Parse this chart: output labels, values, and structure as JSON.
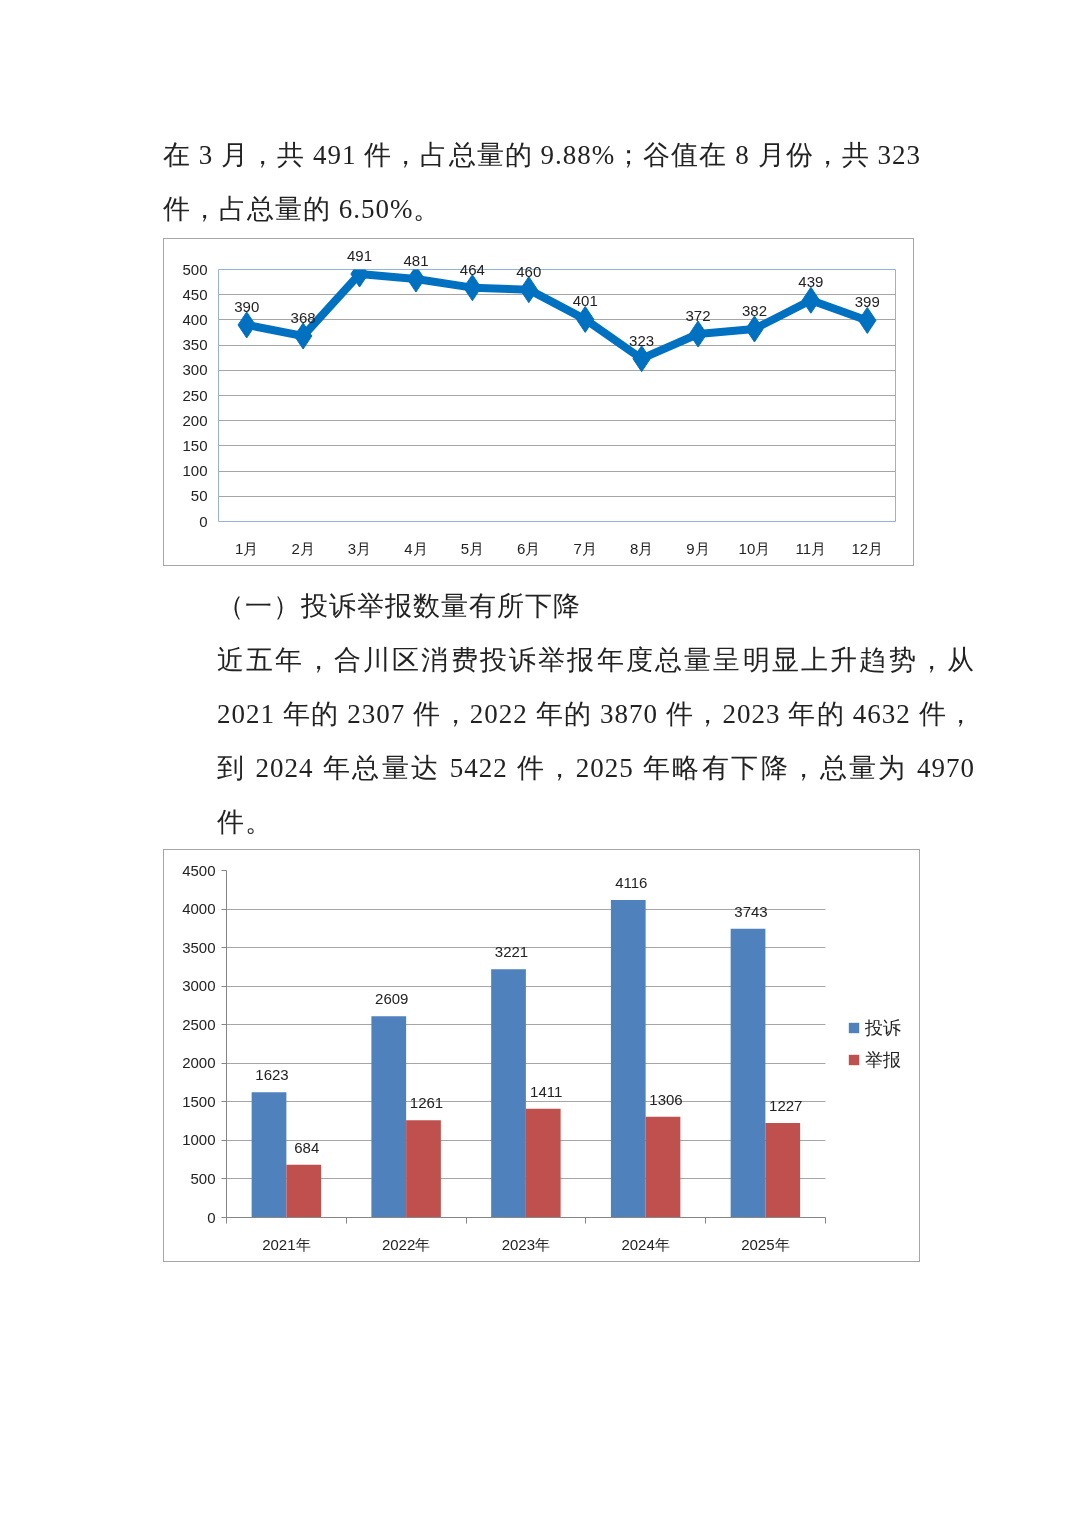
{
  "chart_data": [
    {
      "type": "line",
      "annotations": [
        "在 3 月，共 491 件，占总量的 9.88%；谷值在 8 月份，共 323 件，占总量的 6.50%。"
      ],
      "categories": [
        "1月",
        "2月",
        "3月",
        "4月",
        "5月",
        "6月",
        "7月",
        "8月",
        "9月",
        "10月",
        "11月",
        "12月"
      ],
      "series": [
        {
          "color": "#0070c0",
          "values": [
            390,
            368,
            491,
            481,
            464,
            460,
            401,
            323,
            372,
            382,
            439,
            399
          ]
        }
      ],
      "ylim": [
        0,
        500
      ],
      "yticks": [
        0,
        50,
        100,
        150,
        200,
        250,
        300,
        350,
        400,
        450,
        500
      ],
      "grid": "y",
      "marker": "diamond",
      "line_style": "solid",
      "data_labels": true
    },
    {
      "type": "bar",
      "annotations": [
        "（一）投诉举报数量有所下降",
        "近五年，合川区消费投诉举报年度总量呈明显上升趋势，从 2021 年的 2307 件，2022 年的 3870 件，2023 年的 4632 件，到 2024 年总量达 5422 件，2025 年略有下降，总量为 4970 件。"
      ],
      "categories": [
        "2021年",
        "2022年",
        "2023年",
        "2024年",
        "2025年"
      ],
      "series": [
        {
          "name": "投诉",
          "color": "#4f81bd",
          "values": [
            1623,
            2609,
            3221,
            4116,
            3743
          ]
        },
        {
          "name": "举报",
          "color": "#c0504d",
          "values": [
            684,
            1261,
            1411,
            1306,
            1227
          ]
        }
      ],
      "ylim": [
        0,
        4500
      ],
      "yticks": [
        0,
        500,
        1000,
        1500,
        2000,
        2500,
        3000,
        3500,
        4000,
        4500
      ],
      "grid": "y",
      "legend": "right",
      "data_labels": true
    }
  ]
}
